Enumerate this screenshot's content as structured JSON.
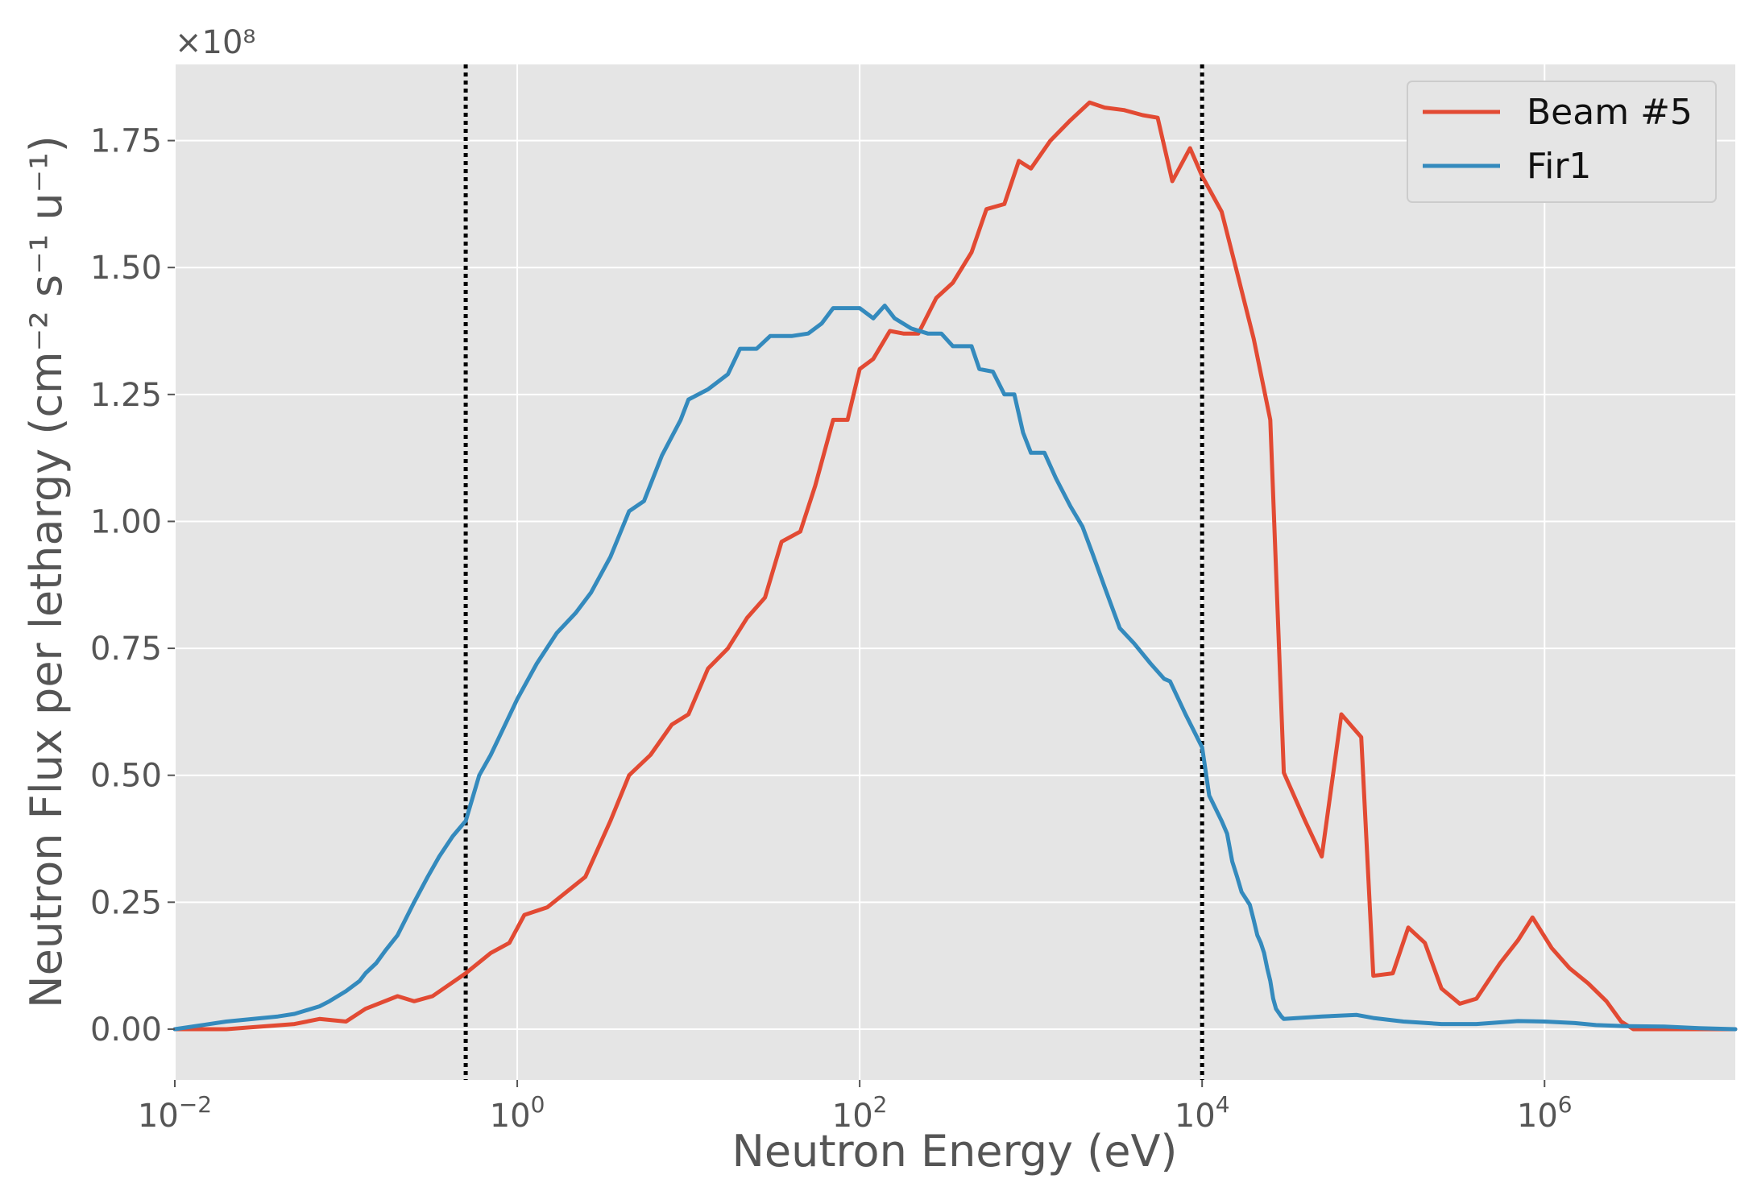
{
  "chart_data": {
    "type": "line",
    "title": "",
    "xlabel": "Neutron Energy (eV)",
    "ylabel": "Neutron Flux per lethargy (cm⁻² s⁻¹ u⁻¹)",
    "xscale": "log",
    "xlim": [
      0.01,
      13000000
    ],
    "ylim": [
      -0.1,
      1.9
    ],
    "y_multiplier_label": "×10⁸",
    "x_ticks": [
      {
        "value": 0.01,
        "base": "10",
        "exp": "−2"
      },
      {
        "value": 1,
        "base": "10",
        "exp": "0"
      },
      {
        "value": 100,
        "base": "10",
        "exp": "2"
      },
      {
        "value": 10000,
        "base": "10",
        "exp": "4"
      },
      {
        "value": 1000000,
        "base": "10",
        "exp": "6"
      }
    ],
    "y_ticks": [
      {
        "value": 0.0,
        "label": "0.00"
      },
      {
        "value": 0.25,
        "label": "0.25"
      },
      {
        "value": 0.5,
        "label": "0.50"
      },
      {
        "value": 0.75,
        "label": "0.75"
      },
      {
        "value": 1.0,
        "label": "1.00"
      },
      {
        "value": 1.25,
        "label": "1.25"
      },
      {
        "value": 1.5,
        "label": "1.50"
      },
      {
        "value": 1.75,
        "label": "1.75"
      }
    ],
    "vertical_lines": [
      0.5,
      10000
    ],
    "grid": true,
    "legend_position": "top-right",
    "series": [
      {
        "name": "Beam #5",
        "color": "#E24A33",
        "points": [
          [
            0.01,
            0.0
          ],
          [
            0.02,
            0.0
          ],
          [
            0.05,
            0.01
          ],
          [
            0.07,
            0.02
          ],
          [
            0.1,
            0.015
          ],
          [
            0.13,
            0.04
          ],
          [
            0.2,
            0.065
          ],
          [
            0.25,
            0.055
          ],
          [
            0.32,
            0.065
          ],
          [
            0.5,
            0.11
          ],
          [
            0.7,
            0.15
          ],
          [
            0.9,
            0.17
          ],
          [
            1.1,
            0.225
          ],
          [
            1.5,
            0.24
          ],
          [
            2.5,
            0.3
          ],
          [
            3.5,
            0.41
          ],
          [
            4.5,
            0.5
          ],
          [
            6.0,
            0.54
          ],
          [
            8.0,
            0.6
          ],
          [
            10.0,
            0.62
          ],
          [
            13.0,
            0.71
          ],
          [
            17.0,
            0.75
          ],
          [
            22.0,
            0.81
          ],
          [
            28.0,
            0.85
          ],
          [
            35.0,
            0.96
          ],
          [
            45.0,
            0.98
          ],
          [
            55.0,
            1.07
          ],
          [
            70.0,
            1.2
          ],
          [
            85.0,
            1.2
          ],
          [
            100.0,
            1.3
          ],
          [
            120.0,
            1.32
          ],
          [
            150.0,
            1.375
          ],
          [
            180.0,
            1.37
          ],
          [
            220.0,
            1.37
          ],
          [
            280.0,
            1.44
          ],
          [
            350.0,
            1.47
          ],
          [
            450.0,
            1.53
          ],
          [
            550.0,
            1.615
          ],
          [
            700.0,
            1.625
          ],
          [
            850.0,
            1.71
          ],
          [
            1000.0,
            1.695
          ],
          [
            1300.0,
            1.75
          ],
          [
            1700.0,
            1.79
          ],
          [
            2200.0,
            1.825
          ],
          [
            2700.0,
            1.815
          ],
          [
            3500.0,
            1.81
          ],
          [
            4500.0,
            1.8
          ],
          [
            5500.0,
            1.795
          ],
          [
            6700.0,
            1.67
          ],
          [
            8500.0,
            1.735
          ],
          [
            10000.0,
            1.68
          ],
          [
            13000.0,
            1.61
          ],
          [
            16000.0,
            1.49
          ],
          [
            20000.0,
            1.36
          ],
          [
            25000.0,
            1.2
          ],
          [
            30000.0,
            0.505
          ],
          [
            40000.0,
            0.41
          ],
          [
            50000.0,
            0.34
          ],
          [
            65000.0,
            0.62
          ],
          [
            85000.0,
            0.575
          ],
          [
            100000.0,
            0.105
          ],
          [
            130000.0,
            0.11
          ],
          [
            160000.0,
            0.2
          ],
          [
            200000.0,
            0.17
          ],
          [
            250000.0,
            0.08
          ],
          [
            320000.0,
            0.05
          ],
          [
            400000.0,
            0.06
          ],
          [
            550000.0,
            0.13
          ],
          [
            700000.0,
            0.175
          ],
          [
            850000.0,
            0.22
          ],
          [
            1100000.0,
            0.16
          ],
          [
            1400000.0,
            0.12
          ],
          [
            1800000.0,
            0.09
          ],
          [
            2300000.0,
            0.055
          ],
          [
            2800000.0,
            0.015
          ],
          [
            3300000.0,
            0.0
          ],
          [
            5000000.0,
            0.0
          ],
          [
            8000000.0,
            0.0
          ],
          [
            13000000.0,
            0.0
          ]
        ]
      },
      {
        "name": "Fir1",
        "color": "#348ABD",
        "points": [
          [
            0.01,
            0.0
          ],
          [
            0.02,
            0.015
          ],
          [
            0.04,
            0.025
          ],
          [
            0.05,
            0.03
          ],
          [
            0.07,
            0.045
          ],
          [
            0.08,
            0.055
          ],
          [
            0.1,
            0.075
          ],
          [
            0.12,
            0.095
          ],
          [
            0.13,
            0.11
          ],
          [
            0.15,
            0.13
          ],
          [
            0.17,
            0.155
          ],
          [
            0.2,
            0.185
          ],
          [
            0.25,
            0.25
          ],
          [
            0.3,
            0.3
          ],
          [
            0.35,
            0.34
          ],
          [
            0.42,
            0.38
          ],
          [
            0.5,
            0.41
          ],
          [
            0.6,
            0.5
          ],
          [
            0.7,
            0.54
          ],
          [
            0.85,
            0.6
          ],
          [
            1.0,
            0.65
          ],
          [
            1.3,
            0.72
          ],
          [
            1.7,
            0.78
          ],
          [
            2.2,
            0.82
          ],
          [
            2.7,
            0.86
          ],
          [
            3.5,
            0.93
          ],
          [
            4.5,
            1.02
          ],
          [
            5.5,
            1.04
          ],
          [
            7.0,
            1.13
          ],
          [
            9.0,
            1.2
          ],
          [
            10.0,
            1.24
          ],
          [
            13.0,
            1.26
          ],
          [
            17.0,
            1.29
          ],
          [
            20.0,
            1.34
          ],
          [
            25.0,
            1.34
          ],
          [
            30.0,
            1.365
          ],
          [
            40.0,
            1.365
          ],
          [
            50.0,
            1.37
          ],
          [
            60.0,
            1.39
          ],
          [
            70.0,
            1.42
          ],
          [
            85.0,
            1.42
          ],
          [
            100.0,
            1.42
          ],
          [
            120.0,
            1.4
          ],
          [
            140.0,
            1.425
          ],
          [
            160.0,
            1.4
          ],
          [
            200.0,
            1.38
          ],
          [
            250.0,
            1.37
          ],
          [
            300.0,
            1.37
          ],
          [
            350.0,
            1.345
          ],
          [
            450.0,
            1.345
          ],
          [
            500.0,
            1.3
          ],
          [
            600.0,
            1.295
          ],
          [
            700.0,
            1.25
          ],
          [
            800.0,
            1.25
          ],
          [
            900.0,
            1.175
          ],
          [
            1000.0,
            1.135
          ],
          [
            1200.0,
            1.135
          ],
          [
            1400.0,
            1.085
          ],
          [
            1700.0,
            1.03
          ],
          [
            2000.0,
            0.99
          ],
          [
            2300.0,
            0.935
          ],
          [
            2700.0,
            0.87
          ],
          [
            3300.0,
            0.79
          ],
          [
            4000.0,
            0.76
          ],
          [
            5000.0,
            0.72
          ],
          [
            6000.0,
            0.69
          ],
          [
            6500.0,
            0.685
          ],
          [
            8000.0,
            0.62
          ],
          [
            10000.0,
            0.555
          ],
          [
            11000.0,
            0.46
          ],
          [
            13000.0,
            0.41
          ],
          [
            14000.0,
            0.385
          ],
          [
            15000.0,
            0.33
          ],
          [
            16000.0,
            0.3
          ],
          [
            17000.0,
            0.27
          ],
          [
            19000.0,
            0.245
          ],
          [
            20000.0,
            0.215
          ],
          [
            21000.0,
            0.185
          ],
          [
            22000.0,
            0.17
          ],
          [
            23000.0,
            0.15
          ],
          [
            24000.0,
            0.12
          ],
          [
            25000.0,
            0.095
          ],
          [
            26000.0,
            0.06
          ],
          [
            27000.0,
            0.04
          ],
          [
            29000.0,
            0.025
          ],
          [
            30000.0,
            0.02
          ],
          [
            50000.0,
            0.025
          ],
          [
            80000.0,
            0.028
          ],
          [
            100000.0,
            0.022
          ],
          [
            150000.0,
            0.015
          ],
          [
            250000.0,
            0.01
          ],
          [
            400000.0,
            0.01
          ],
          [
            700000.0,
            0.016
          ],
          [
            1000000.0,
            0.015
          ],
          [
            1500000.0,
            0.012
          ],
          [
            2000000.0,
            0.008
          ],
          [
            3000000.0,
            0.006
          ],
          [
            5000000.0,
            0.005
          ],
          [
            8000000.0,
            0.002
          ],
          [
            13000000.0,
            0.0
          ]
        ]
      }
    ]
  }
}
